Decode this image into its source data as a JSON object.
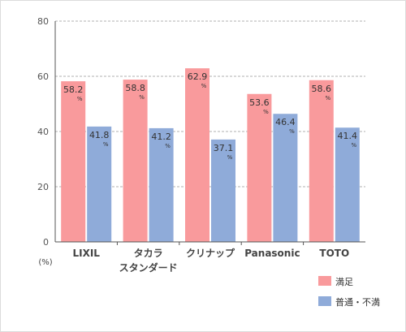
{
  "chart_data": {
    "type": "bar",
    "ylim": [
      0,
      80
    ],
    "yticks": [
      "0",
      "20",
      "40",
      "60",
      "80"
    ],
    "yunit": "(%)",
    "value_suffix": "%",
    "categories": [
      [
        "LIXIL"
      ],
      [
        "タカラ",
        "スタンダード"
      ],
      [
        "クリナップ"
      ],
      [
        "Panasonic"
      ],
      [
        "TOTO"
      ]
    ],
    "series": [
      {
        "name": "満足",
        "color": "#f99a9c",
        "values": [
          58.2,
          58.8,
          62.9,
          53.6,
          58.6
        ]
      },
      {
        "name": "普通・不満",
        "color": "#8fabd9",
        "values": [
          41.8,
          41.2,
          37.1,
          46.4,
          41.4
        ]
      }
    ],
    "grid": "dashed-horizontal",
    "legend": "bottom-right"
  }
}
